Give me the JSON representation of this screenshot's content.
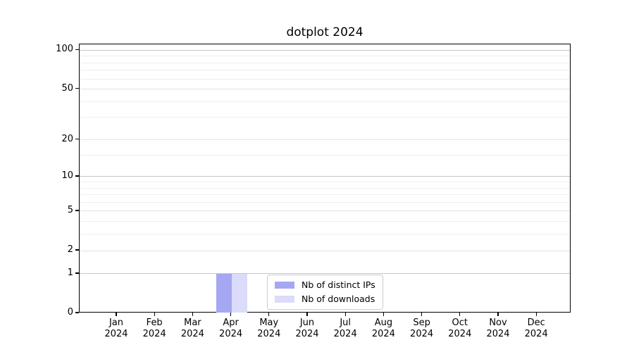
{
  "chart_data": {
    "type": "bar",
    "title": "dotplot 2024",
    "y_scale": "log1p",
    "ylim": [
      0,
      111
    ],
    "y_ticks": [
      0,
      1,
      2,
      5,
      10,
      20,
      50,
      100
    ],
    "y_major_ticks": [
      1,
      10,
      100
    ],
    "y_minor_ticks": [
      3,
      4,
      6,
      7,
      8,
      9,
      15,
      30,
      40,
      60,
      70,
      80,
      90
    ],
    "categories": [
      {
        "month": "Jan",
        "year": "2024"
      },
      {
        "month": "Feb",
        "year": "2024"
      },
      {
        "month": "Mar",
        "year": "2024"
      },
      {
        "month": "Apr",
        "year": "2024"
      },
      {
        "month": "May",
        "year": "2024"
      },
      {
        "month": "Jun",
        "year": "2024"
      },
      {
        "month": "Jul",
        "year": "2024"
      },
      {
        "month": "Aug",
        "year": "2024"
      },
      {
        "month": "Sep",
        "year": "2024"
      },
      {
        "month": "Oct",
        "year": "2024"
      },
      {
        "month": "Nov",
        "year": "2024"
      },
      {
        "month": "Dec",
        "year": "2024"
      }
    ],
    "series": [
      {
        "name": "Nb of distinct IPs",
        "color": "#a6a7f2",
        "values": [
          0,
          0,
          0,
          1,
          0,
          0,
          0,
          0,
          0,
          0,
          0,
          0
        ]
      },
      {
        "name": "Nb of downloads",
        "color": "#dbdcfa",
        "values": [
          0,
          0,
          0,
          1,
          0,
          0,
          0,
          0,
          0,
          0,
          0,
          0
        ]
      }
    ],
    "legend": {
      "position": "lower center"
    },
    "grid": true,
    "colors": {
      "grid_major": "#c6c6c6",
      "grid_mid": "#e2e2e2",
      "grid_minor": "#eeeeee",
      "spine": "#000000"
    }
  }
}
